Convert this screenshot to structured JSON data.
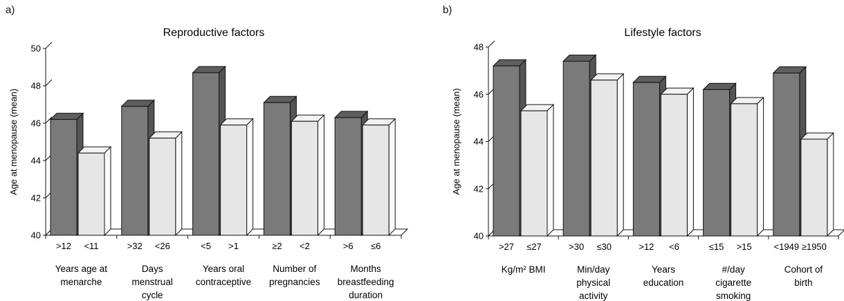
{
  "panels": [
    {
      "label": "a)",
      "chart_data": {
        "type": "bar",
        "title": "Reproductive factors",
        "ylabel": "Age at menopause (mean)",
        "xlabel": "",
        "ylim": [
          40,
          50
        ],
        "yticks": [
          40,
          42,
          44,
          46,
          48,
          50
        ],
        "grid": false,
        "groups": [
          {
            "label_lines": [
              "Years age at",
              "menarche"
            ],
            "bars": [
              {
                "label": ">12",
                "value": 46.2,
                "tone": "dark"
              },
              {
                "label": "<11",
                "value": 44.4,
                "tone": "light"
              }
            ]
          },
          {
            "label_lines": [
              "Days",
              "menstrual",
              "cycle"
            ],
            "bars": [
              {
                "label": ">32",
                "value": 46.9,
                "tone": "dark"
              },
              {
                "label": "<26",
                "value": 45.2,
                "tone": "light"
              }
            ]
          },
          {
            "label_lines": [
              "Years oral",
              "contraceptive"
            ],
            "bars": [
              {
                "label": "<5",
                "value": 48.7,
                "tone": "dark"
              },
              {
                "label": ">1",
                "value": 45.9,
                "tone": "light"
              }
            ]
          },
          {
            "label_lines": [
              "Number of",
              "pregnancies"
            ],
            "bars": [
              {
                "label": "≥2",
                "value": 47.1,
                "tone": "dark"
              },
              {
                "label": "<2",
                "value": 46.1,
                "tone": "light"
              }
            ]
          },
          {
            "label_lines": [
              "Months",
              "breastfeeding",
              "duration"
            ],
            "bars": [
              {
                "label": ">6",
                "value": 46.3,
                "tone": "dark"
              },
              {
                "label": "≤6",
                "value": 45.9,
                "tone": "light"
              }
            ]
          }
        ]
      }
    },
    {
      "label": "b)",
      "chart_data": {
        "type": "bar",
        "title": "Lifestyle factors",
        "ylabel": "Age at menopause (mean)",
        "xlabel": "",
        "ylim": [
          40,
          48
        ],
        "yticks": [
          40,
          42,
          44,
          46,
          48
        ],
        "grid": false,
        "groups": [
          {
            "label_lines": [
              "Kg/m² BMI"
            ],
            "bars": [
              {
                "label": ">27",
                "value": 47.2,
                "tone": "dark"
              },
              {
                "label": "≤27",
                "value": 45.3,
                "tone": "light"
              }
            ]
          },
          {
            "label_lines": [
              "Min/day",
              "physical",
              "activity"
            ],
            "bars": [
              {
                "label": ">30",
                "value": 47.4,
                "tone": "dark"
              },
              {
                "label": "≤30",
                "value": 46.6,
                "tone": "light"
              }
            ]
          },
          {
            "label_lines": [
              "Years",
              "education"
            ],
            "bars": [
              {
                "label": ">12",
                "value": 46.5,
                "tone": "dark"
              },
              {
                "label": "<6",
                "value": 46.0,
                "tone": "light"
              }
            ]
          },
          {
            "label_lines": [
              "#/day",
              "cigarette",
              "smoking"
            ],
            "bars": [
              {
                "label": "≤15",
                "value": 46.2,
                "tone": "dark"
              },
              {
                "label": ">15",
                "value": 45.6,
                "tone": "light"
              }
            ]
          },
          {
            "label_lines": [
              "Cohort of",
              "birth"
            ],
            "bars": [
              {
                "label": "<1949",
                "value": 46.9,
                "tone": "dark"
              },
              {
                "label": "≥1950",
                "value": 44.1,
                "tone": "light"
              }
            ]
          }
        ]
      }
    }
  ],
  "colors": {
    "dark_front": "#7a7a7a",
    "dark_top": "#5e5e5e",
    "dark_side": "#545454",
    "light_front": "#e6e6e6",
    "light_top": "#f2f2f2",
    "light_side": "#fafafa",
    "stroke": "#111111"
  }
}
